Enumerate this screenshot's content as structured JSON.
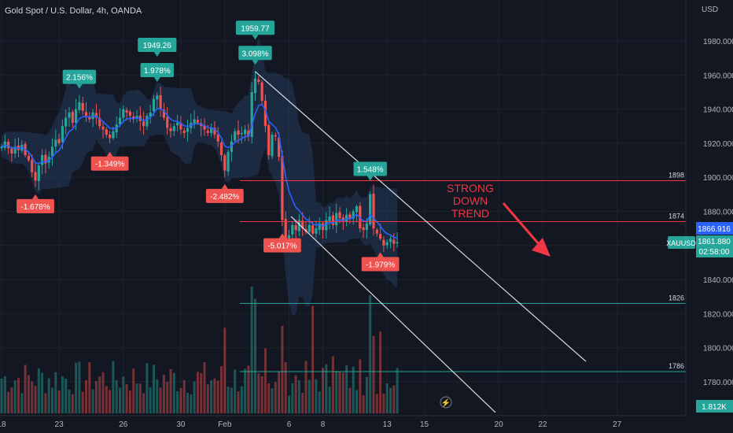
{
  "header": {
    "title": "Gold Spot / U.S. Dollar, 4h, OANDA"
  },
  "axis": {
    "currency": "USD",
    "price_ticks": [
      1780,
      1800,
      1820,
      1840,
      1860,
      1880,
      1900,
      1920,
      1940,
      1960,
      1980
    ],
    "price_tick_labels": [
      "1780.000",
      "1800.000",
      "1820.000",
      "1840.000",
      "1860.000",
      "1880.000",
      "1900.000",
      "1920.000",
      "1940.000",
      "1960.000",
      "1980.000"
    ],
    "ylim": [
      1772,
      1998
    ],
    "date_ticks": [
      {
        "idx": 0,
        "label": "18"
      },
      {
        "idx": 17,
        "label": "23"
      },
      {
        "idx": 36,
        "label": "26"
      },
      {
        "idx": 53,
        "label": "30"
      },
      {
        "idx": 66,
        "label": "Feb"
      },
      {
        "idx": 85,
        "label": "6"
      },
      {
        "idx": 95,
        "label": "8"
      },
      {
        "idx": 114,
        "label": "13"
      },
      {
        "idx": 125,
        "label": "15"
      },
      {
        "idx": 147,
        "label": "20"
      },
      {
        "idx": 160,
        "label": "22"
      },
      {
        "idx": 182,
        "label": "27"
      }
    ]
  },
  "price_badges": {
    "ema": {
      "value": "1866.916",
      "color": "#2962ff"
    },
    "last": {
      "symbol": "XAUUSD",
      "value": "1861.880",
      "countdown": "02:58:00",
      "color": "#26a69a"
    },
    "volume": {
      "value": "1.812K",
      "color": "#26a69a"
    }
  },
  "levels": [
    {
      "price": 1898,
      "label": "1898",
      "color": "#f23645"
    },
    {
      "price": 1874,
      "label": "1874",
      "color": "#f23645"
    },
    {
      "price": 1826,
      "label": "1826",
      "color": "#26a69a"
    },
    {
      "price": 1786,
      "label": "1786",
      "color": "#26a69a"
    }
  ],
  "annotation": {
    "lines": [
      "STRONG",
      "DOWN",
      "TREND"
    ],
    "color": "#f23645"
  },
  "pivots": [
    {
      "idx": 10,
      "label": "-1.678%",
      "type": "low"
    },
    {
      "idx": 23,
      "label": "2.156%",
      "type": "high"
    },
    {
      "idx": 32,
      "label": "-1.349%",
      "type": "low"
    },
    {
      "idx": 46,
      "label": "1.978%",
      "type": "high",
      "price_label": "1949.26"
    },
    {
      "idx": 66,
      "label": "-2.482%",
      "type": "low"
    },
    {
      "idx": 75,
      "label": "3.098%",
      "type": "high",
      "price_label": "1959.77"
    },
    {
      "idx": 83,
      "label": "-5.017%",
      "type": "low"
    },
    {
      "idx": 109,
      "label": "1.548%",
      "type": "high"
    },
    {
      "idx": 112,
      "label": "-1.979%",
      "type": "low"
    }
  ],
  "colors": {
    "bg": "#131722",
    "up": "#26a69a",
    "down": "#ef5350",
    "ema": "#2962ff",
    "band": "#2a4a7a",
    "grid": "#1e222d",
    "text": "#b2b5be",
    "trend": "#ffffff"
  },
  "chart_data": {
    "type": "candlestick",
    "title": "Gold Spot / U.S. Dollar, 4h, OANDA",
    "ylabel": "USD",
    "ylim": [
      1772,
      1998
    ],
    "closes": [
      1918,
      1921,
      1917,
      1914,
      1918,
      1916,
      1919,
      1913,
      1910,
      1903,
      1898,
      1907,
      1913,
      1908,
      1912,
      1918,
      1922,
      1920,
      1930,
      1935,
      1938,
      1932,
      1940,
      1944,
      1939,
      1936,
      1934,
      1938,
      1935,
      1930,
      1928,
      1925,
      1923,
      1927,
      1931,
      1935,
      1940,
      1938,
      1936,
      1934,
      1936,
      1933,
      1930,
      1936,
      1938,
      1946,
      1948,
      1940,
      1935,
      1929,
      1927,
      1930,
      1932,
      1928,
      1926,
      1929,
      1932,
      1934,
      1932,
      1930,
      1928,
      1926,
      1929,
      1925,
      1921,
      1913,
      1904,
      1915,
      1921,
      1927,
      1925,
      1926,
      1928,
      1924,
      1950,
      1958,
      1956,
      1945,
      1930,
      1913,
      1925,
      1924,
      1912,
      1875,
      1864,
      1866,
      1872,
      1869,
      1875,
      1870,
      1868,
      1872,
      1867,
      1870,
      1873,
      1869,
      1875,
      1877,
      1872,
      1879,
      1876,
      1874,
      1878,
      1876,
      1880,
      1883,
      1870,
      1869,
      1873,
      1890,
      1870,
      1867,
      1864,
      1860,
      1862,
      1864,
      1861,
      1862
    ]
  }
}
